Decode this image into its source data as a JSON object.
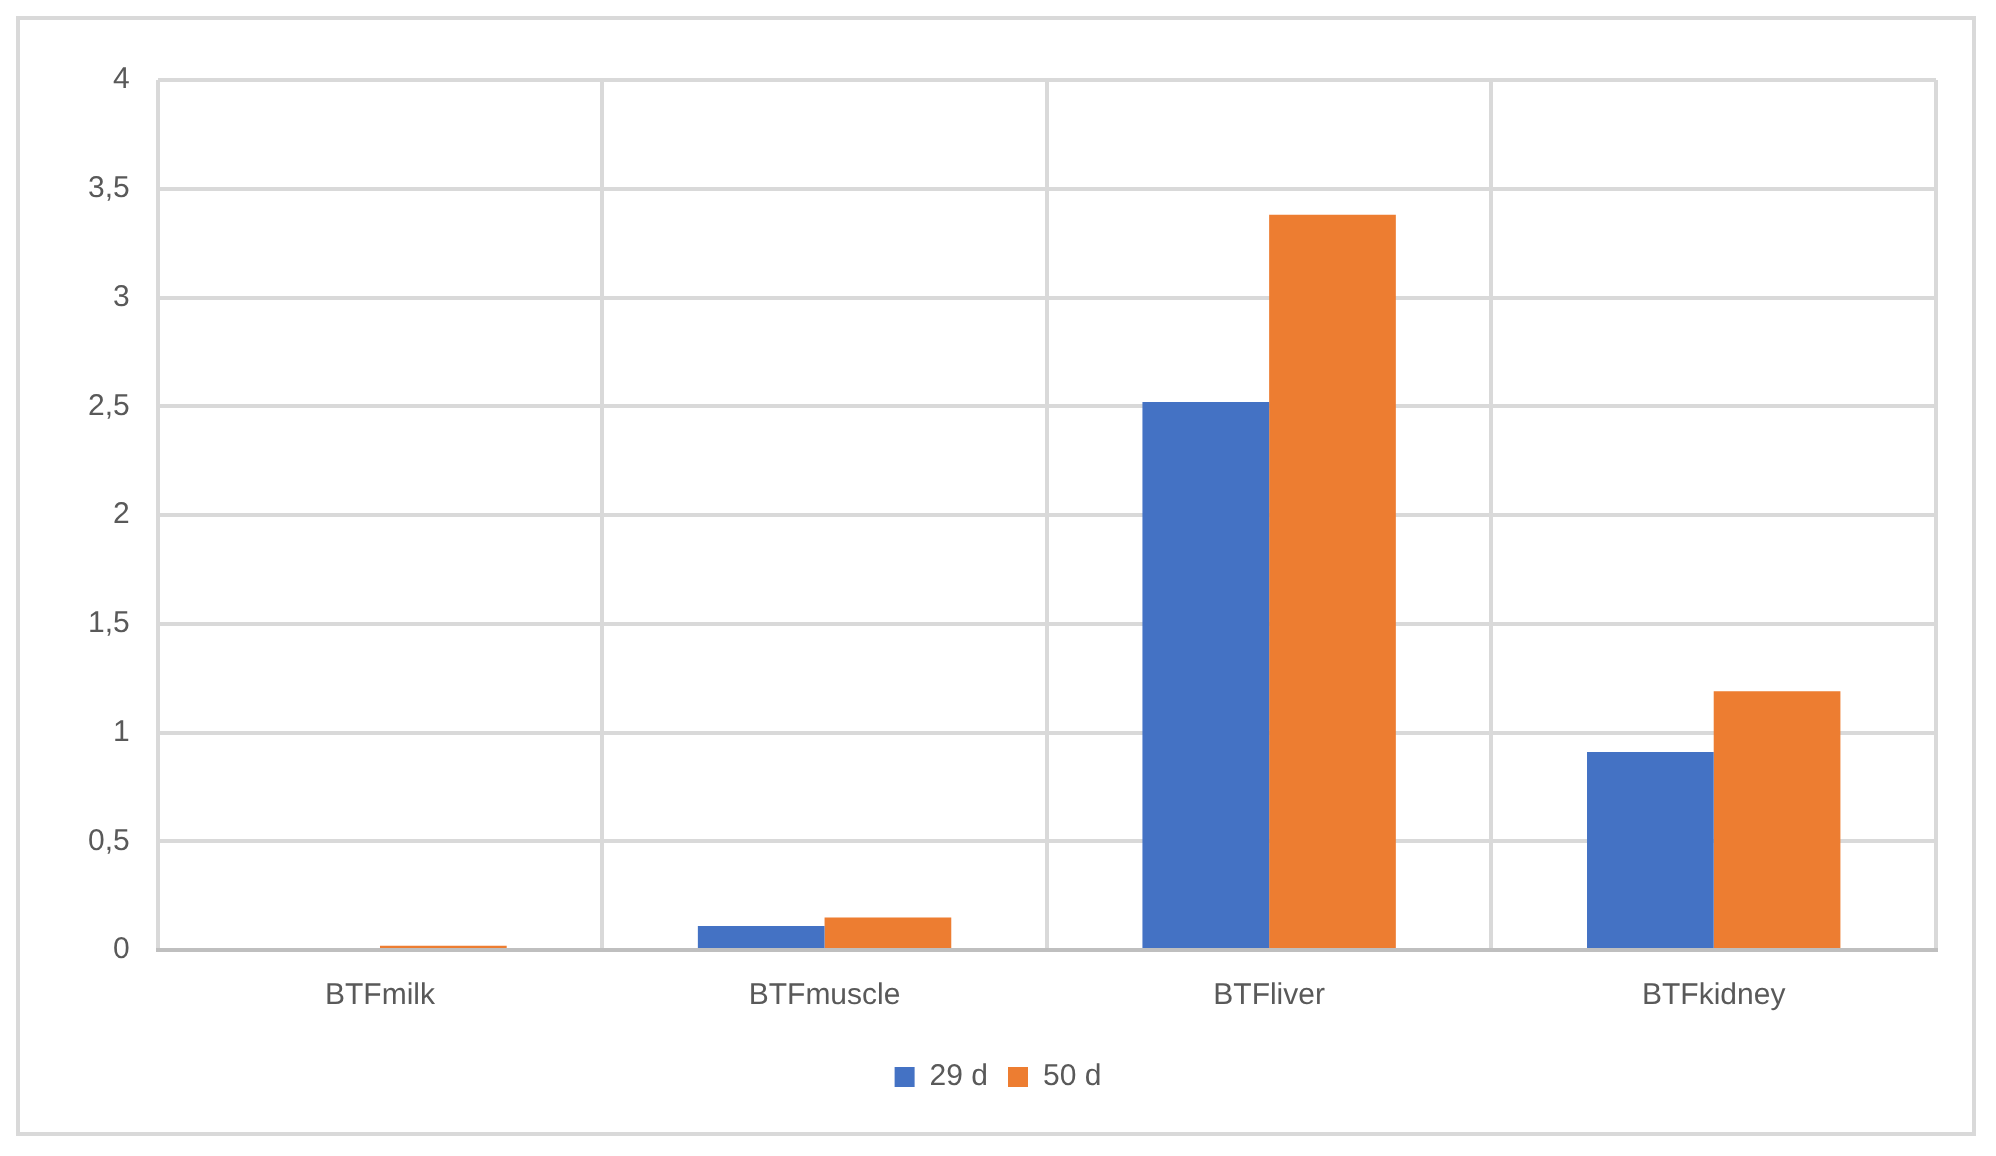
{
  "chart_data": {
    "type": "bar",
    "categories": [
      "BTFmilk",
      "BTFmuscle",
      "BTFliver",
      "BTFkidney"
    ],
    "series": [
      {
        "name": "29 d",
        "color": "#4472c4",
        "values": [
          0,
          0.11,
          2.52,
          0.91
        ]
      },
      {
        "name": "50 d",
        "color": "#ed7d31",
        "values": [
          0.02,
          0.15,
          3.38,
          1.19
        ]
      }
    ],
    "ylim": [
      0,
      4
    ],
    "yticks": [
      0,
      {
        "value": 0.5,
        "label": "0,5"
      },
      1,
      {
        "value": 1.5,
        "label": "1,5"
      },
      2,
      {
        "value": 2.5,
        "label": "2,5"
      },
      3,
      {
        "value": 3.5,
        "label": "3,5"
      },
      4
    ],
    "grid": true,
    "legend": "bottom"
  }
}
